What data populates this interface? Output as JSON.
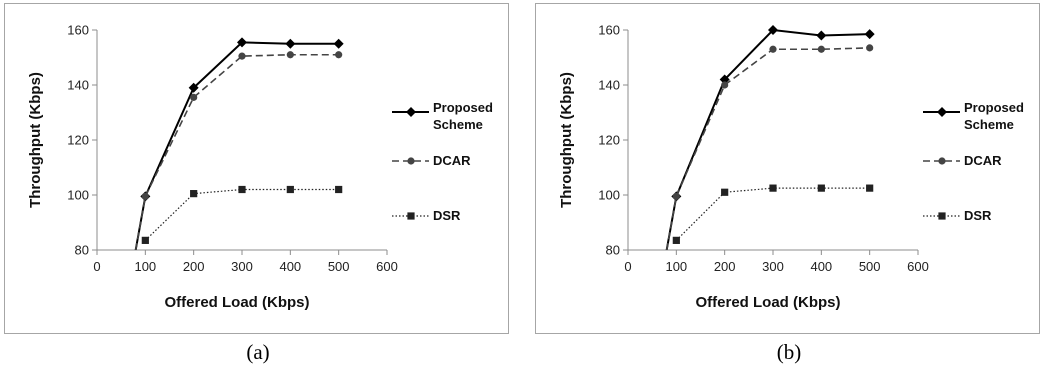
{
  "captions": [
    "(a)",
    "(b)"
  ],
  "chart_data": [
    {
      "type": "line",
      "xlabel": "Offered Load (Kbps)",
      "ylabel": "Throughput (Kbps)",
      "xlim": [
        0,
        600
      ],
      "ylim": [
        80,
        160
      ],
      "xticks": [
        0,
        100,
        200,
        300,
        400,
        500,
        600
      ],
      "yticks": [
        80,
        100,
        120,
        140,
        160
      ],
      "grid": false,
      "legend_position": "right",
      "series": [
        {
          "name": "Proposed Scheme",
          "name_lines": [
            "Proposed",
            "Scheme"
          ],
          "style": "solid",
          "marker": "diamond",
          "color": "#000000",
          "x": [
            80,
            100,
            200,
            300,
            400,
            500
          ],
          "y": [
            80,
            99.5,
            139,
            155.5,
            155,
            155
          ]
        },
        {
          "name": "DCAR",
          "name_lines": [
            "DCAR"
          ],
          "style": "dashed",
          "marker": "circle",
          "color": "#444444",
          "x": [
            80,
            100,
            200,
            300,
            400,
            500
          ],
          "y": [
            80,
            99.5,
            135.5,
            150.5,
            151,
            151
          ]
        },
        {
          "name": "DSR",
          "name_lines": [
            "DSR"
          ],
          "style": "dotted",
          "marker": "square",
          "color": "#222222",
          "x": [
            100,
            200,
            300,
            400,
            500
          ],
          "y": [
            83.5,
            100.5,
            102,
            102,
            102
          ]
        }
      ]
    },
    {
      "type": "line",
      "xlabel": "Offered Load (Kbps)",
      "ylabel": "Throughput (Kbps)",
      "xlim": [
        0,
        600
      ],
      "ylim": [
        80,
        160
      ],
      "xticks": [
        0,
        100,
        200,
        300,
        400,
        500,
        600
      ],
      "yticks": [
        80,
        100,
        120,
        140,
        160
      ],
      "grid": false,
      "legend_position": "right",
      "series": [
        {
          "name": "Proposed Scheme",
          "name_lines": [
            "Proposed",
            "Scheme"
          ],
          "style": "solid",
          "marker": "diamond",
          "color": "#000000",
          "x": [
            80,
            100,
            200,
            300,
            400,
            500
          ],
          "y": [
            80,
            99.5,
            142,
            160,
            158,
            158.5
          ]
        },
        {
          "name": "DCAR",
          "name_lines": [
            "DCAR"
          ],
          "style": "dashed",
          "marker": "circle",
          "color": "#444444",
          "x": [
            80,
            100,
            200,
            300,
            400,
            500
          ],
          "y": [
            80,
            99.5,
            140,
            153,
            153,
            153.5
          ]
        },
        {
          "name": "DSR",
          "name_lines": [
            "DSR"
          ],
          "style": "dotted",
          "marker": "square",
          "color": "#222222",
          "x": [
            100,
            200,
            300,
            400,
            500
          ],
          "y": [
            83.5,
            101,
            102.5,
            102.5,
            102.5
          ]
        }
      ]
    }
  ]
}
